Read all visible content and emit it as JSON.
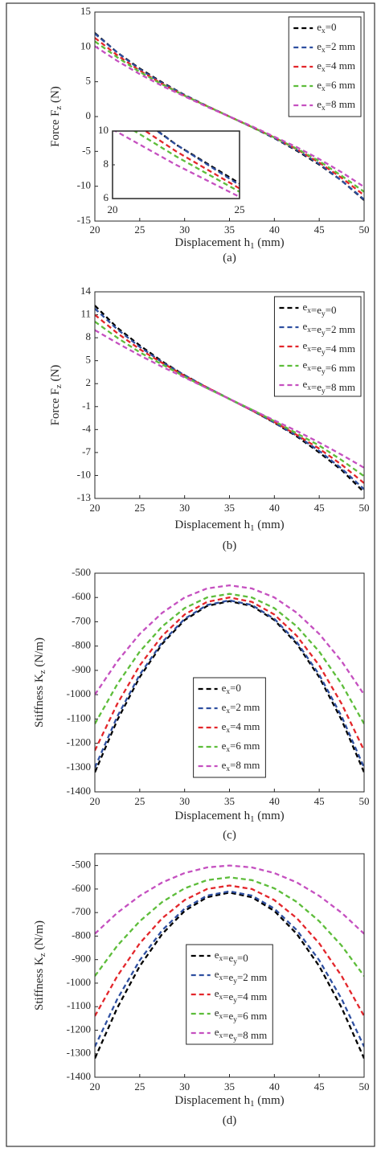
{
  "chart_data": [
    {
      "type": "line",
      "caption": "(a)",
      "xlabel": "Displacement h1 (mm)",
      "ylabel": "Force Fz (N)",
      "x": [
        20,
        22.5,
        25,
        27.5,
        30,
        32.5,
        35,
        37.5,
        40,
        42.5,
        45,
        47.5,
        50
      ],
      "xlim": [
        20,
        50
      ],
      "xticks": [
        20,
        25,
        30,
        35,
        40,
        45,
        50
      ],
      "ylim": [
        -15,
        15
      ],
      "yticks": [
        -15,
        -10,
        -5,
        0,
        5,
        10,
        15
      ],
      "legend_position": "northeast",
      "series": [
        {
          "name": "ex=0",
          "color": "#000000",
          "values": [
            12.0,
            9.2,
            6.9,
            4.9,
            3.1,
            1.5,
            0,
            -1.5,
            -3.1,
            -4.9,
            -6.9,
            -9.2,
            -12.0
          ]
        },
        {
          "name": "ex=2 mm",
          "color": "#2e4fa0",
          "values": [
            11.9,
            9.2,
            6.8,
            4.8,
            3.1,
            1.5,
            0,
            -1.5,
            -3.1,
            -4.8,
            -6.8,
            -9.2,
            -11.9
          ]
        },
        {
          "name": "ex=4 mm",
          "color": "#e3262b",
          "values": [
            11.3,
            8.8,
            6.6,
            4.7,
            3.0,
            1.5,
            0,
            -1.5,
            -3.0,
            -4.7,
            -6.6,
            -8.8,
            -11.3
          ]
        },
        {
          "name": "ex=6 mm",
          "color": "#5dbd3a",
          "values": [
            10.8,
            8.5,
            6.4,
            4.6,
            3.0,
            1.5,
            0,
            -1.5,
            -3.0,
            -4.6,
            -6.4,
            -8.5,
            -10.8
          ]
        },
        {
          "name": "ex=8 mm",
          "color": "#c550c0",
          "values": [
            10.1,
            8.0,
            6.1,
            4.4,
            2.9,
            1.4,
            0,
            -1.4,
            -2.9,
            -4.4,
            -6.1,
            -8.0,
            -10.1
          ]
        }
      ],
      "inset": {
        "xlim": [
          20,
          25
        ],
        "xticks": [
          20,
          25
        ],
        "ylim": [
          6,
          10
        ],
        "yticks": [
          6,
          8,
          10
        ]
      }
    },
    {
      "type": "line",
      "caption": "(b)",
      "xlabel": "Displacement h1 (mm)",
      "ylabel": "Force Fz (N)",
      "x": [
        20,
        22.5,
        25,
        27.5,
        30,
        32.5,
        35,
        37.5,
        40,
        42.5,
        45,
        47.5,
        50
      ],
      "xlim": [
        20,
        50
      ],
      "xticks": [
        20,
        25,
        30,
        35,
        40,
        45,
        50
      ],
      "ylim": [
        -13,
        14
      ],
      "yticks": [
        -13,
        -10,
        -7,
        -4,
        -1,
        2,
        5,
        8,
        11,
        14
      ],
      "legend_position": "northeast",
      "series": [
        {
          "name": "ex=ey=0",
          "color": "#000000",
          "values": [
            12.2,
            9.3,
            7.0,
            4.9,
            3.1,
            1.5,
            0,
            -1.5,
            -3.1,
            -4.9,
            -7.0,
            -9.3,
            -12.2
          ]
        },
        {
          "name": "ex=ey=2 mm",
          "color": "#2e4fa0",
          "values": [
            11.8,
            9.1,
            6.8,
            4.8,
            3.1,
            1.5,
            0,
            -1.5,
            -3.1,
            -4.8,
            -6.8,
            -9.1,
            -11.8
          ]
        },
        {
          "name": "ex=ey=4 mm",
          "color": "#e3262b",
          "values": [
            11.0,
            8.6,
            6.5,
            4.7,
            3.0,
            1.5,
            0,
            -1.5,
            -3.0,
            -4.7,
            -6.5,
            -8.6,
            -11.0
          ]
        },
        {
          "name": "ex=ey=6 mm",
          "color": "#5dbd3a",
          "values": [
            10.1,
            8.0,
            6.1,
            4.5,
            2.9,
            1.4,
            0,
            -1.4,
            -2.9,
            -4.5,
            -6.1,
            -8.0,
            -10.1
          ]
        },
        {
          "name": "ex=ey=8 mm",
          "color": "#c550c0",
          "values": [
            9.0,
            7.3,
            5.7,
            4.2,
            2.8,
            1.4,
            0,
            -1.4,
            -2.8,
            -4.2,
            -5.7,
            -7.3,
            -9.0
          ]
        }
      ]
    },
    {
      "type": "line",
      "caption": "(c)",
      "xlabel": "Displacement h1 (mm)",
      "ylabel": "Stiffness Kz (N/m)",
      "x": [
        20,
        22.5,
        25,
        27.5,
        30,
        32.5,
        35,
        37.5,
        40,
        42.5,
        45,
        47.5,
        50
      ],
      "xlim": [
        20,
        50
      ],
      "xticks": [
        20,
        25,
        30,
        35,
        40,
        45,
        50
      ],
      "ylim": [
        -1400,
        -500
      ],
      "yticks": [
        -1400,
        -1300,
        -1200,
        -1100,
        -1000,
        -900,
        -800,
        -700,
        -600,
        -500
      ],
      "legend_position": "center",
      "series": [
        {
          "name": "ex=0",
          "color": "#000000",
          "values": [
            -1320,
            -1105,
            -928,
            -791,
            -693,
            -635,
            -615,
            -635,
            -693,
            -791,
            -928,
            -1105,
            -1320
          ]
        },
        {
          "name": "ex=2 mm",
          "color": "#2e4fa0",
          "values": [
            -1300,
            -1090,
            -918,
            -784,
            -688,
            -631,
            -612,
            -631,
            -688,
            -784,
            -918,
            -1090,
            -1300
          ]
        },
        {
          "name": "ex=4 mm",
          "color": "#e3262b",
          "values": [
            -1230,
            -1038,
            -880,
            -758,
            -670,
            -618,
            -600,
            -618,
            -670,
            -758,
            -880,
            -1038,
            -1230
          ]
        },
        {
          "name": "ex=6 mm",
          "color": "#5dbd3a",
          "values": [
            -1120,
            -957,
            -823,
            -719,
            -644,
            -600,
            -585,
            -600,
            -644,
            -719,
            -823,
            -957,
            -1120
          ]
        },
        {
          "name": "ex=8 mm",
          "color": "#c550c0",
          "values": [
            -1000,
            -863,
            -750,
            -663,
            -600,
            -563,
            -550,
            -563,
            -600,
            -663,
            -750,
            -863,
            -1000
          ]
        }
      ]
    },
    {
      "type": "line",
      "caption": "(d)",
      "xlabel": "Displacement h1 (mm)",
      "ylabel": "Stiffness Kz (N/m)",
      "x": [
        20,
        22.5,
        25,
        27.5,
        30,
        32.5,
        35,
        37.5,
        40,
        42.5,
        45,
        47.5,
        50
      ],
      "xlim": [
        20,
        50
      ],
      "xticks": [
        20,
        25,
        30,
        35,
        40,
        45,
        50
      ],
      "ylim": [
        -1400,
        -450
      ],
      "yticks": [
        -1400,
        -1300,
        -1200,
        -1100,
        -1000,
        -900,
        -800,
        -700,
        -600,
        -500
      ],
      "legend_position": "center",
      "series": [
        {
          "name": "ex=ey=0",
          "color": "#000000",
          "values": [
            -1320,
            -1105,
            -928,
            -791,
            -693,
            -635,
            -615,
            -635,
            -693,
            -791,
            -928,
            -1105,
            -1320
          ]
        },
        {
          "name": "ex=ey=2 mm",
          "color": "#2e4fa0",
          "values": [
            -1270,
            -1068,
            -903,
            -775,
            -683,
            -628,
            -610,
            -628,
            -683,
            -775,
            -903,
            -1068,
            -1270
          ]
        },
        {
          "name": "ex=ey=4 mm",
          "color": "#e3262b",
          "values": [
            -1140,
            -970,
            -831,
            -724,
            -647,
            -600,
            -585,
            -600,
            -647,
            -724,
            -831,
            -970,
            -1140
          ]
        },
        {
          "name": "ex=ey=6 mm",
          "color": "#5dbd3a",
          "values": [
            -970,
            -841,
            -737,
            -655,
            -597,
            -562,
            -550,
            -562,
            -597,
            -655,
            -737,
            -841,
            -970
          ]
        },
        {
          "name": "ex=ey=8 mm",
          "color": "#c550c0",
          "values": [
            -790,
            -701,
            -629,
            -572,
            -532,
            -508,
            -500,
            -508,
            -532,
            -572,
            -629,
            -701,
            -790
          ]
        }
      ]
    }
  ]
}
